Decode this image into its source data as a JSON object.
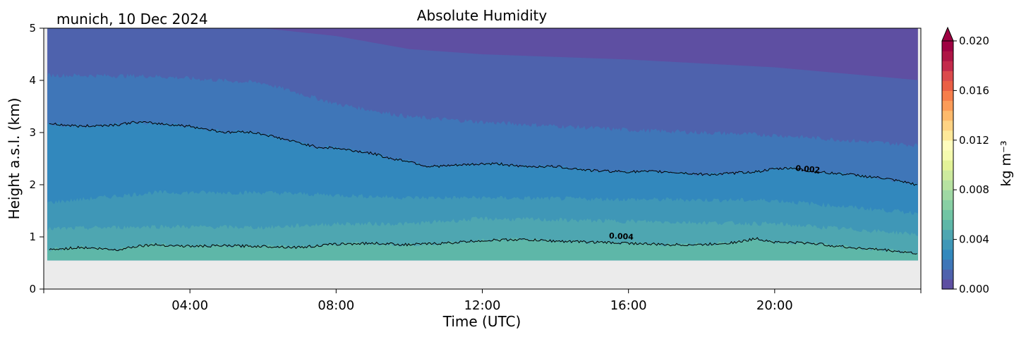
{
  "chart_data": {
    "type": "heatmap",
    "title": "Absolute Humidity",
    "subtitle": "munich, 10 Dec 2024",
    "xlabel": "Time (UTC)",
    "ylabel": "Height a.s.l. (km)",
    "xlim_hours": [
      0,
      24
    ],
    "ylim": [
      0,
      5
    ],
    "x_ticks": [
      {
        "hour": 4,
        "label": "04:00"
      },
      {
        "hour": 8,
        "label": "08:00"
      },
      {
        "hour": 12,
        "label": "12:00"
      },
      {
        "hour": 16,
        "label": "16:00"
      },
      {
        "hour": 20,
        "label": "20:00"
      }
    ],
    "y_ticks": [
      {
        "value": 0,
        "label": "0"
      },
      {
        "value": 1,
        "label": "1"
      },
      {
        "value": 2,
        "label": "2"
      },
      {
        "value": 3,
        "label": "3"
      },
      {
        "value": 4,
        "label": "4"
      },
      {
        "value": 5,
        "label": "5"
      }
    ],
    "data_bottom_km": 0.55,
    "no_data_color": "#ebebeb",
    "colorbar": {
      "label": "kg m⁻³",
      "min": 0.0,
      "max": 0.02,
      "extend": "max",
      "ticks": [
        {
          "value": 0.0,
          "label": "0.000"
        },
        {
          "value": 0.004,
          "label": "0.004"
        },
        {
          "value": 0.008,
          "label": "0.008"
        },
        {
          "value": 0.012,
          "label": "0.012"
        },
        {
          "value": 0.016,
          "label": "0.016"
        },
        {
          "value": 0.02,
          "label": "0.020"
        }
      ],
      "colors": [
        "#5e4fa2",
        "#4e62ad",
        "#3f76b8",
        "#3288bd",
        "#3f97b7",
        "#4ea6b1",
        "#5eb7a8",
        "#71c4a4",
        "#88cfa4",
        "#9fd8a4",
        "#b7e2a1",
        "#cdea9e",
        "#e3f398",
        "#f5fbaf",
        "#fffdbe",
        "#fee99a",
        "#fed384",
        "#fdba6c",
        "#fc9c59",
        "#f67e4b",
        "#ea5f45",
        "#db4a4c",
        "#c32a4b",
        "#ae1545",
        "#9e0142"
      ]
    },
    "contours": [
      {
        "level": "0.002",
        "label": "0.002",
        "label_hour": 20.9,
        "label_km": 2.25,
        "x": [
          0.15,
          1,
          2,
          2.5,
          3,
          4,
          5,
          5.5,
          6,
          7,
          7.5,
          8,
          9,
          9.5,
          10,
          10.5,
          11,
          12,
          12.5,
          13,
          14,
          15,
          16,
          17,
          18,
          18.5,
          19,
          19.5,
          20,
          20.5,
          21,
          22,
          23,
          23.9
        ],
        "y": [
          3.17,
          3.12,
          3.15,
          3.2,
          3.18,
          3.12,
          3.0,
          3.02,
          2.97,
          2.8,
          2.72,
          2.7,
          2.6,
          2.5,
          2.45,
          2.35,
          2.36,
          2.4,
          2.4,
          2.35,
          2.35,
          2.27,
          2.25,
          2.25,
          2.2,
          2.2,
          2.23,
          2.25,
          2.3,
          2.32,
          2.25,
          2.2,
          2.12,
          2.0
        ]
      },
      {
        "level": "0.004",
        "label": "0.004",
        "label_hour": 15.8,
        "label_km": 0.96,
        "x": [
          0.15,
          1,
          2,
          2.5,
          3,
          4,
          5,
          6,
          7,
          8,
          9,
          10,
          11,
          12,
          13,
          14,
          15,
          16,
          17,
          18,
          19,
          19.5,
          20,
          21,
          22,
          23,
          23.9
        ],
        "y": [
          0.75,
          0.8,
          0.75,
          0.82,
          0.85,
          0.82,
          0.83,
          0.82,
          0.8,
          0.86,
          0.88,
          0.85,
          0.88,
          0.93,
          0.95,
          0.92,
          0.9,
          0.88,
          0.85,
          0.85,
          0.9,
          0.97,
          0.9,
          0.88,
          0.8,
          0.75,
          0.68
        ]
      }
    ],
    "filled_bands": [
      {
        "color": "#5e4fa2",
        "x": [
          0,
          24
        ],
        "top": [
          5,
          5
        ]
      },
      {
        "color": "#4e62ad",
        "x": [
          0,
          3,
          6,
          8,
          10,
          12,
          16,
          20,
          24
        ],
        "top": [
          5,
          5,
          5,
          4.85,
          4.6,
          4.5,
          4.4,
          4.25,
          4.0
        ]
      },
      {
        "color": "#3f76b8",
        "x": [
          0,
          3,
          6,
          8,
          10,
          12,
          16,
          20,
          24
        ],
        "top": [
          4.1,
          4.08,
          3.95,
          3.55,
          3.3,
          3.2,
          3.05,
          2.95,
          2.75
        ]
      },
      {
        "color": "#3288bd",
        "x": [
          0.15,
          1,
          2,
          2.5,
          3,
          4,
          5,
          5.5,
          6,
          7,
          7.5,
          8,
          9,
          9.5,
          10,
          10.5,
          11,
          12,
          12.5,
          13,
          14,
          15,
          16,
          17,
          18,
          18.5,
          19,
          19.5,
          20,
          20.5,
          21,
          22,
          23,
          23.9
        ],
        "top": [
          3.17,
          3.12,
          3.15,
          3.2,
          3.18,
          3.12,
          3.0,
          3.02,
          2.97,
          2.8,
          2.72,
          2.7,
          2.6,
          2.5,
          2.45,
          2.35,
          2.36,
          2.4,
          2.4,
          2.35,
          2.35,
          2.27,
          2.25,
          2.25,
          2.2,
          2.2,
          2.23,
          2.25,
          2.3,
          2.32,
          2.25,
          2.2,
          2.12,
          2.0
        ]
      },
      {
        "color": "#3f97b7",
        "x": [
          0,
          3,
          6,
          8,
          10,
          12,
          16,
          20,
          24
        ],
        "top": [
          1.65,
          1.85,
          1.85,
          1.8,
          1.75,
          1.75,
          1.72,
          1.7,
          1.45
        ]
      },
      {
        "color": "#4ea6b1",
        "x": [
          0,
          3,
          6,
          8,
          10,
          12,
          16,
          20,
          24
        ],
        "top": [
          1.15,
          1.2,
          1.18,
          1.25,
          1.25,
          1.35,
          1.3,
          1.25,
          1.05
        ]
      },
      {
        "color": "#5eb7a8",
        "x": [
          0.15,
          1,
          2,
          2.5,
          3,
          4,
          5,
          6,
          7,
          8,
          9,
          10,
          11,
          12,
          13,
          14,
          15,
          16,
          17,
          18,
          19,
          19.5,
          20,
          21,
          22,
          23,
          23.9
        ],
        "top": [
          0.75,
          0.8,
          0.75,
          0.82,
          0.85,
          0.82,
          0.83,
          0.82,
          0.8,
          0.86,
          0.88,
          0.85,
          0.88,
          0.93,
          0.95,
          0.92,
          0.9,
          0.88,
          0.85,
          0.85,
          0.9,
          0.97,
          0.9,
          0.88,
          0.8,
          0.75,
          0.68
        ]
      }
    ]
  }
}
